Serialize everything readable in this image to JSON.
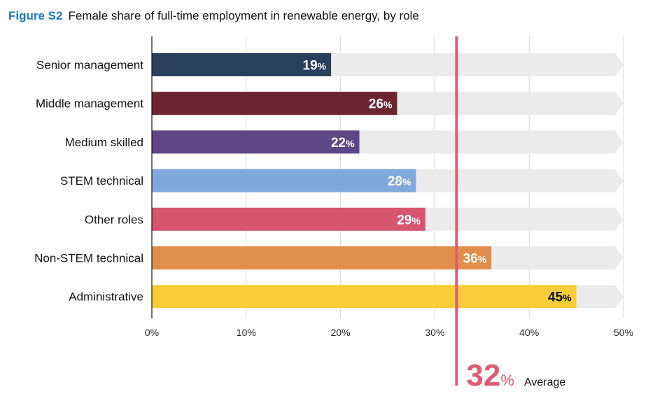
{
  "title": {
    "figure_label": "Figure S2",
    "text": "Female share of full-time employment in renewable energy, by role"
  },
  "chart_data": {
    "type": "bar",
    "orientation": "horizontal",
    "title": "Female share of full-time employment in renewable energy, by role",
    "categories": [
      "Senior management",
      "Middle management",
      "Medium skilled",
      "STEM technical",
      "Other roles",
      "Non-STEM technical",
      "Administrative"
    ],
    "values": [
      19,
      26,
      22,
      28,
      29,
      36,
      45
    ],
    "value_labels": [
      "19",
      "26",
      "22",
      "28",
      "29",
      "36",
      "45"
    ],
    "colors": [
      "#2a3f5c",
      "#6b2430",
      "#5f4785",
      "#80a8da",
      "#d5566e",
      "#e08e4b",
      "#f8cd3a"
    ],
    "label_colors": [
      "#ffffff",
      "#ffffff",
      "#ffffff",
      "#ffffff",
      "#ffffff",
      "#ffffff",
      "#111111"
    ],
    "xlim": [
      0,
      50
    ],
    "xticks": [
      0,
      10,
      20,
      30,
      40,
      50
    ],
    "xtick_labels": [
      "0%",
      "10%",
      "20%",
      "30%",
      "40%",
      "50%"
    ],
    "unit": "%",
    "background_color": "#ebebeb",
    "average": {
      "value": 32,
      "label": "32",
      "unit": "%",
      "text": "Average",
      "color": "#e05a73"
    },
    "grid": true
  }
}
